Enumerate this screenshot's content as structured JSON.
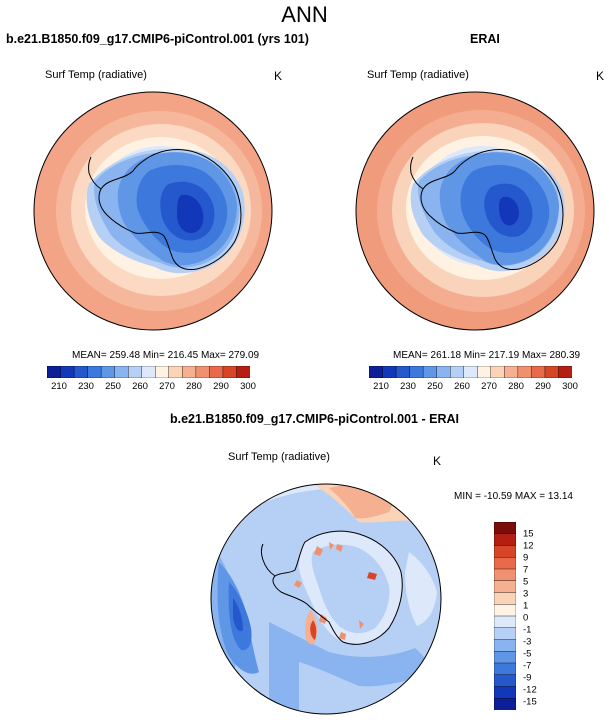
{
  "page": {
    "title": "ANN"
  },
  "colors": {
    "warm": [
      "#fff2e3",
      "#fbd4b8",
      "#f5b092",
      "#ef906f",
      "#e96a4b",
      "#d64526",
      "#b51f12",
      "#7a0c0a"
    ],
    "cool": [
      "#0c1f99",
      "#1237b8",
      "#2558cc",
      "#3d78dc",
      "#5f97e6",
      "#8ab4ef",
      "#b6d0f5",
      "#dde8fa"
    ],
    "land_outline": "#000000"
  },
  "panels": [
    {
      "title": "b.e21.B1850.f09_g17.CMIP6-piControl.001 (yrs 101)",
      "variable": "Surf Temp (radiative)",
      "unit": "K",
      "stats": "MEAN= 259.48   Min= 216.45   Max= 279.09",
      "colorbar_ticks": [
        "210",
        "230",
        "250",
        "260",
        "270",
        "280",
        "290",
        "300"
      ]
    },
    {
      "title": "ERAI",
      "variable": "Surf Temp (radiative)",
      "unit": "K",
      "stats": "MEAN= 261.18   Min= 217.19   Max= 280.39",
      "colorbar_ticks": [
        "210",
        "230",
        "250",
        "260",
        "270",
        "280",
        "290",
        "300"
      ]
    }
  ],
  "diff_panel": {
    "title": "b.e21.B1850.f09_g17.CMIP6-piControl.001 - ERAI",
    "variable": "Surf Temp (radiative)",
    "unit": "K",
    "stats": "MIN = -10.59 MAX =  13.14",
    "colorbar_ticks": [
      "15",
      "12",
      "9",
      "7",
      "5",
      "3",
      "1",
      "0",
      "-1",
      "-3",
      "-5",
      "-7",
      "-9",
      "-12",
      "-15"
    ]
  },
  "chart_data": [
    {
      "type": "heatmap",
      "projection": "south-polar-stereographic",
      "title": "b.e21.B1850.f09_g17.CMIP6-piControl.001 (yrs 101)",
      "variable": "Surf Temp (radiative)",
      "units": "K",
      "mean": 259.48,
      "min": 216.45,
      "max": 279.09,
      "levels": [
        210,
        220,
        230,
        240,
        250,
        255,
        260,
        265,
        270,
        275,
        280,
        285,
        290,
        295,
        300
      ]
    },
    {
      "type": "heatmap",
      "projection": "south-polar-stereographic",
      "title": "ERAI",
      "variable": "Surf Temp (radiative)",
      "units": "K",
      "mean": 261.18,
      "min": 217.19,
      "max": 280.39,
      "levels": [
        210,
        220,
        230,
        240,
        250,
        255,
        260,
        265,
        270,
        275,
        280,
        285,
        290,
        295,
        300
      ]
    },
    {
      "type": "heatmap",
      "projection": "south-polar-stereographic",
      "title": "b.e21.B1850.f09_g17.CMIP6-piControl.001 - ERAI",
      "variable": "Surf Temp (radiative)",
      "units": "K",
      "min": -10.59,
      "max": 13.14,
      "levels": [
        -15,
        -12,
        -9,
        -7,
        -5,
        -3,
        -1,
        0,
        1,
        3,
        5,
        7,
        9,
        12,
        15
      ]
    }
  ]
}
